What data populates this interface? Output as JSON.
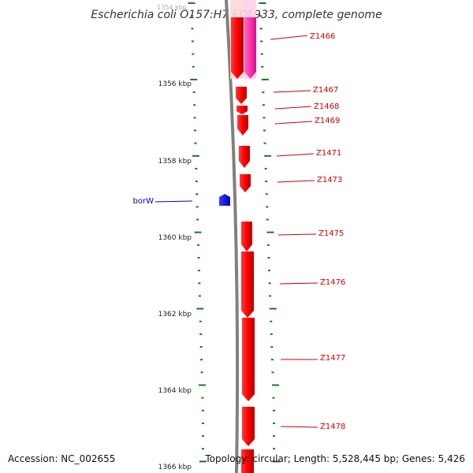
{
  "title": "Escherichia coli O157:H7 EDL933, complete genome",
  "accession": "Accession: NC_002655",
  "topology": "Topology: circular; Length: 5,528,445 bp; Genes: 5,426",
  "colors": {
    "backbone": "#808080",
    "tick": "#1a7a1a",
    "gene_red": "#ff0000",
    "gene_pink": "#ff33aa",
    "label_red": "#cc0000",
    "label_blue": "#0000cc",
    "gene_blue": "#0000ff"
  },
  "ruler": {
    "faint_label": "1354 kbp",
    "labels": [
      "1356 kbp",
      "1358 kbp",
      "1360 kbp",
      "1362 kbp",
      "1364 kbp",
      "1366 kbp"
    ]
  },
  "genes": [
    {
      "label": "Z1466",
      "strand": "-",
      "color": "red"
    },
    {
      "label": "Z1466",
      "strand": "-",
      "color": "pink",
      "hidden_label": true
    },
    {
      "label": "Z1467",
      "strand": "-",
      "color": "red"
    },
    {
      "label": "Z1468",
      "strand": "-",
      "color": "red"
    },
    {
      "label": "Z1469",
      "strand": "-",
      "color": "red"
    },
    {
      "label": "Z1471",
      "strand": "-",
      "color": "red"
    },
    {
      "label": "Z1473",
      "strand": "-",
      "color": "red"
    },
    {
      "label": "Z1475",
      "strand": "-",
      "color": "red"
    },
    {
      "label": "Z1476",
      "strand": "-",
      "color": "red"
    },
    {
      "label": "Z1477",
      "strand": "-",
      "color": "red"
    },
    {
      "label": "Z1478",
      "strand": "-",
      "color": "red"
    },
    {
      "label": "borW",
      "strand": "+",
      "color": "blue"
    }
  ]
}
